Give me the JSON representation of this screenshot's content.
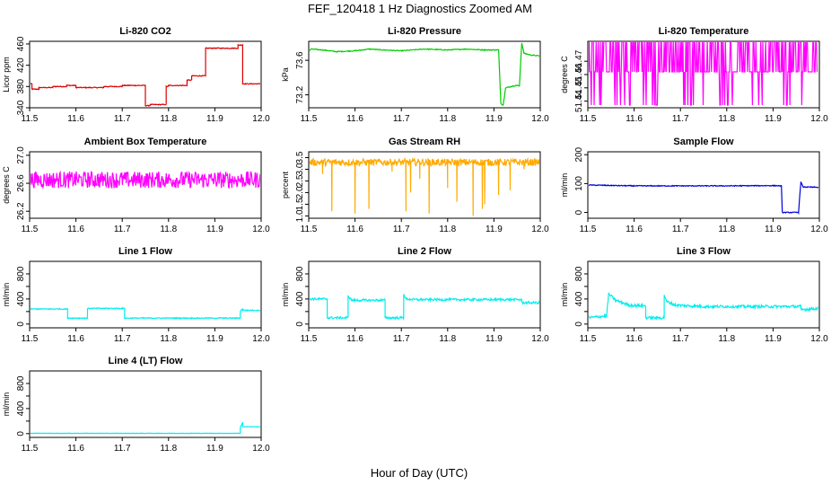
{
  "figure_title": "FEF_120418  1 Hz Diagnostics Zoomed AM",
  "x_axis_label": "Hour of Day (UTC)",
  "chart_data": [
    {
      "type": "line",
      "title": "Li-820 CO2",
      "ylabel": "Licor ppm",
      "color": "#dd0000",
      "xlim": [
        11.5,
        12.0
      ],
      "ylim": [
        340,
        465
      ],
      "yticks": [
        340,
        380,
        420,
        460
      ],
      "xticks": [
        11.5,
        11.6,
        11.7,
        11.8,
        11.9,
        12.0
      ],
      "noise": 0.8,
      "series": [
        {
          "name": "CO2",
          "x": [
            11.5,
            11.505,
            11.505,
            11.52,
            11.52,
            11.55,
            11.55,
            11.58,
            11.58,
            11.6,
            11.6,
            11.66,
            11.66,
            11.7,
            11.7,
            11.75,
            11.75,
            11.76,
            11.76,
            11.795,
            11.795,
            11.8,
            11.8,
            11.84,
            11.84,
            11.85,
            11.85,
            11.88,
            11.88,
            11.95,
            11.95,
            11.96,
            11.96,
            12.0
          ],
          "y": [
            385,
            385,
            375,
            375,
            378,
            378,
            380,
            380,
            382,
            382,
            378,
            378,
            380,
            380,
            382,
            382,
            344,
            344,
            346,
            346,
            380,
            380,
            382,
            382,
            392,
            392,
            400,
            400,
            452,
            452,
            458,
            458,
            385,
            385
          ]
        }
      ]
    },
    {
      "type": "line",
      "title": "Li-820 Pressure",
      "ylabel": "kPa",
      "color": "#00cc00",
      "xlim": [
        11.5,
        12.0
      ],
      "ylim": [
        73.05,
        73.82
      ],
      "yticks": [
        73.2,
        73.6
      ],
      "ytick_labels": [
        "73.2",
        "73.6"
      ],
      "xticks": [
        11.5,
        11.6,
        11.7,
        11.8,
        11.9,
        12.0
      ],
      "noise": 0.005,
      "series": [
        {
          "name": "Pressure",
          "x": [
            11.5,
            11.505,
            11.53,
            11.56,
            11.6,
            11.63,
            11.66,
            11.7,
            11.75,
            11.8,
            11.84,
            11.88,
            11.91,
            11.915,
            11.92,
            11.925,
            11.94,
            11.95,
            11.955,
            11.96,
            11.965,
            11.98,
            12.0
          ],
          "y": [
            73.7,
            73.73,
            73.72,
            73.7,
            73.71,
            73.73,
            73.72,
            73.71,
            73.73,
            73.72,
            73.73,
            73.72,
            73.72,
            73.1,
            73.08,
            73.28,
            73.3,
            73.31,
            73.3,
            73.8,
            73.68,
            73.66,
            73.65
          ]
        }
      ]
    },
    {
      "type": "line",
      "title": "Li-820 Temperature",
      "ylabel": "degrees C",
      "color": "#ff00ff",
      "xlim": [
        11.5,
        12.0
      ],
      "ylim": [
        51.435,
        51.485
      ],
      "yticks": [
        51.44,
        51.45,
        51.46,
        51.47
      ],
      "ytick_labels": [
        "51.44",
        "51.45",
        "51.46",
        "51.47"
      ],
      "xticks": [
        11.5,
        11.6,
        11.7,
        11.8,
        11.9,
        12.0
      ],
      "series": [
        {
          "name": "Temperature",
          "x": [
            11.5,
            12.0
          ],
          "y": [
            51.462,
            51.462
          ]
        }
      ],
      "discrete_levels": [
        51.437,
        51.462,
        51.485
      ],
      "spike_rate": 0.45
    },
    {
      "type": "line",
      "title": "Ambient Box Temperature",
      "ylabel": "degrees C",
      "color": "#ff00ff",
      "xlim": [
        11.5,
        12.0
      ],
      "ylim": [
        26.1,
        27.05
      ],
      "yticks": [
        26.2,
        26.6,
        27.0
      ],
      "ytick_labels": [
        "26.2",
        "26.6",
        "27.0"
      ],
      "xticks": [
        11.5,
        11.6,
        11.7,
        11.8,
        11.9,
        12.0
      ],
      "noise": 0.12,
      "series": [
        {
          "name": "Ambient",
          "x": [
            11.5,
            12.0
          ],
          "y": [
            26.65,
            26.65
          ]
        }
      ]
    },
    {
      "type": "line",
      "title": "Gas Stream RH",
      "ylabel": "percent",
      "color": "#ffaa00",
      "xlim": [
        11.5,
        12.0
      ],
      "ylim": [
        0.9,
        3.75
      ],
      "yticks": [
        1.0,
        1.5,
        2.0,
        2.5,
        3.0,
        3.5
      ],
      "ytick_labels": [
        "1.0",
        "1.5",
        "2.0",
        "2.5",
        "3.0",
        "3.5"
      ],
      "xticks": [
        11.5,
        11.6,
        11.7,
        11.8,
        11.9,
        12.0
      ],
      "noise": 0.15,
      "series": [
        {
          "name": "RH",
          "x": [
            11.5,
            12.0
          ],
          "y": [
            3.3,
            3.3
          ]
        }
      ],
      "dips": [
        [
          11.55,
          1.2
        ],
        [
          11.6,
          1.1
        ],
        [
          11.63,
          1.3
        ],
        [
          11.71,
          1.2
        ],
        [
          11.72,
          2.0
        ],
        [
          11.76,
          1.1
        ],
        [
          11.8,
          2.2
        ],
        [
          11.82,
          1.6
        ],
        [
          11.855,
          1.0
        ],
        [
          11.875,
          1.3
        ],
        [
          11.88,
          1.5
        ],
        [
          11.91,
          1.9
        ],
        [
          11.935,
          2.1
        ],
        [
          11.965,
          3.0
        ],
        [
          11.53,
          2.8
        ],
        [
          11.68,
          2.9
        ],
        [
          11.74,
          2.6
        ]
      ]
    },
    {
      "type": "line",
      "title": "Sample Flow",
      "ylabel": "ml/min",
      "color": "#0000dd",
      "xlim": [
        11.5,
        12.0
      ],
      "ylim": [
        -20,
        210
      ],
      "yticks": [
        0,
        100,
        200
      ],
      "xticks": [
        11.5,
        11.6,
        11.7,
        11.8,
        11.9,
        12.0
      ],
      "noise": 1.5,
      "series": [
        {
          "name": "Sample Flow",
          "x": [
            11.5,
            11.6,
            11.7,
            11.8,
            11.9,
            11.918,
            11.92,
            11.955,
            11.96,
            11.965,
            11.97,
            12.0
          ],
          "y": [
            95,
            92,
            92,
            92,
            93,
            92,
            0,
            0,
            105,
            88,
            88,
            87
          ]
        }
      ]
    },
    {
      "type": "line",
      "title": "Line 1 Flow",
      "ylabel": "ml/min",
      "color": "#00eeee",
      "xlim": [
        11.5,
        12.0
      ],
      "ylim": [
        -60,
        1000
      ],
      "yticks": [
        0,
        400,
        800
      ],
      "minor_yticks": [
        200,
        600
      ],
      "xticks": [
        11.5,
        11.6,
        11.7,
        11.8,
        11.9,
        12.0
      ],
      "noise": 8,
      "series": [
        {
          "name": "Line 1",
          "x": [
            11.5,
            11.582,
            11.582,
            11.625,
            11.625,
            11.705,
            11.705,
            11.955,
            11.955,
            11.96,
            11.96,
            12.0
          ],
          "y": [
            240,
            240,
            95,
            95,
            250,
            250,
            95,
            95,
            200,
            250,
            220,
            220
          ]
        }
      ]
    },
    {
      "type": "line",
      "title": "Line 2 Flow",
      "ylabel": "ml/min",
      "color": "#00eeee",
      "xlim": [
        11.5,
        12.0
      ],
      "ylim": [
        -60,
        1000
      ],
      "yticks": [
        0,
        400,
        800
      ],
      "minor_yticks": [
        200,
        600
      ],
      "xticks": [
        11.5,
        11.6,
        11.7,
        11.8,
        11.9,
        12.0
      ],
      "noise": 18,
      "series": [
        {
          "name": "Line 2",
          "x": [
            11.5,
            11.54,
            11.54,
            11.585,
            11.585,
            11.593,
            11.665,
            11.665,
            11.705,
            11.705,
            11.71,
            11.73,
            11.96,
            11.96,
            12.0
          ],
          "y": [
            400,
            400,
            100,
            100,
            450,
            380,
            380,
            100,
            100,
            480,
            400,
            390,
            390,
            340,
            340
          ]
        }
      ]
    },
    {
      "type": "line",
      "title": "Line 3 Flow",
      "ylabel": "ml/min",
      "color": "#00eeee",
      "xlim": [
        11.5,
        12.0
      ],
      "ylim": [
        -60,
        1000
      ],
      "yticks": [
        0,
        400,
        800
      ],
      "minor_yticks": [
        200,
        600
      ],
      "xticks": [
        11.5,
        11.6,
        11.7,
        11.8,
        11.9,
        12.0
      ],
      "noise": 22,
      "series": [
        {
          "name": "Line 3",
          "x": [
            11.5,
            11.54,
            11.54,
            11.545,
            11.56,
            11.59,
            11.625,
            11.625,
            11.665,
            11.665,
            11.67,
            11.69,
            11.75,
            11.95,
            11.96,
            11.96,
            12.0
          ],
          "y": [
            100,
            130,
            100,
            480,
            380,
            300,
            290,
            100,
            100,
            470,
            360,
            300,
            280,
            280,
            280,
            230,
            250
          ]
        }
      ]
    },
    {
      "type": "line",
      "title": "Line 4 (LT) Flow",
      "ylabel": "ml/min",
      "color": "#00eeee",
      "xlim": [
        11.5,
        12.0
      ],
      "ylim": [
        -60,
        1000
      ],
      "yticks": [
        0,
        400,
        800
      ],
      "minor_yticks": [
        200,
        600
      ],
      "xticks": [
        11.5,
        11.6,
        11.7,
        11.8,
        11.9,
        12.0
      ],
      "noise": 2,
      "series": [
        {
          "name": "Line 4",
          "x": [
            11.5,
            11.955,
            11.955,
            11.96,
            11.96,
            12.0
          ],
          "y": [
            5,
            5,
            100,
            180,
            110,
            110
          ]
        }
      ]
    }
  ]
}
